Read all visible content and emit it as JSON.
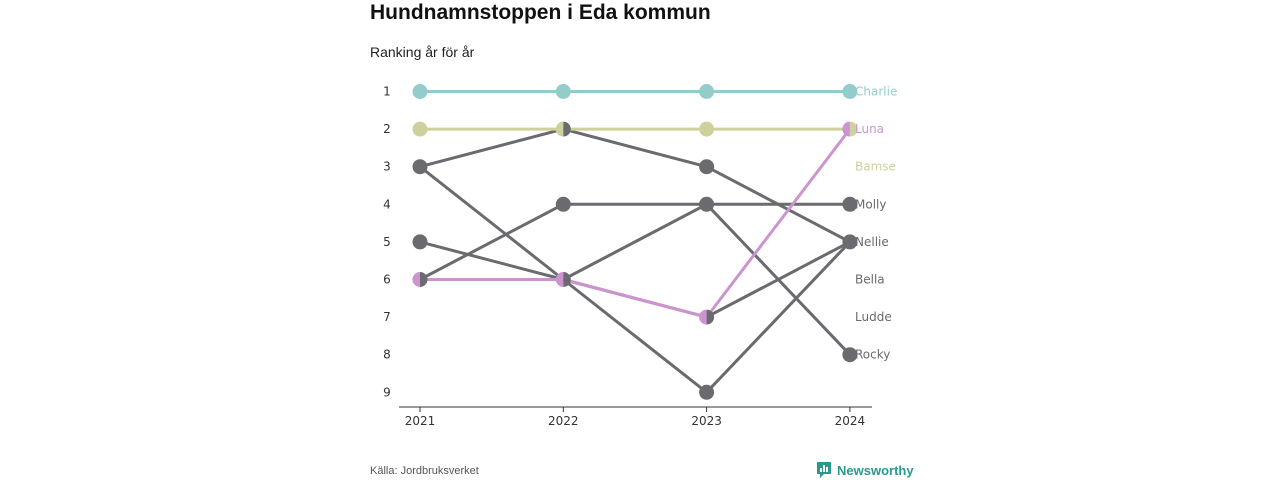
{
  "header": {
    "title": "Hundnamnstoppen i Eda kommun",
    "subtitle": "Ranking år för år"
  },
  "footer": {
    "source": "Källa: Jordbruksverket",
    "brand": "Newsworthy",
    "brand_icon": "bar-chart-logo-icon"
  },
  "colors": {
    "teal": "#94cccb",
    "olive": "#cfd19d",
    "pink": "#cc93cf",
    "gray": "#6a6a6f",
    "axis": "#333333",
    "brand": "#2a9a8c"
  },
  "chart_data": {
    "type": "line",
    "title": "Hundnamnstoppen i Eda kommun",
    "subtitle": "Ranking år för år",
    "x": [
      "2021",
      "2022",
      "2023",
      "2024"
    ],
    "y_ticks": [
      "1",
      "2",
      "3",
      "4",
      "5",
      "6",
      "7",
      "8",
      "9"
    ],
    "y_range": [
      1,
      9
    ],
    "y_reversed": true,
    "series": [
      {
        "name": "Charlie",
        "values": [
          1,
          1,
          1,
          1
        ],
        "color": "#94cccb"
      },
      {
        "name": "Luna",
        "values": [
          6,
          6,
          7,
          2
        ],
        "color": "#cc93cf"
      },
      {
        "name": "Bamse",
        "values": [
          2,
          2,
          2,
          2
        ],
        "color": "#cfd19d"
      },
      {
        "name": "Molly",
        "values": [
          6,
          4,
          4,
          4
        ],
        "color": "#6a6a6f"
      },
      {
        "name": "Nellie",
        "values": [
          3,
          2,
          3,
          5
        ],
        "color": "#6a6a6f"
      },
      {
        "name": "Bella",
        "values": [
          5,
          6,
          4,
          8
        ],
        "color": "#6a6a6f"
      },
      {
        "name": "Ludde",
        "values": [
          3,
          6,
          9,
          5
        ],
        "color": "#6a6a6f"
      },
      {
        "name": "Rocky",
        "values": [
          6,
          6,
          7,
          5
        ],
        "color": "#6a6a6f"
      }
    ]
  }
}
